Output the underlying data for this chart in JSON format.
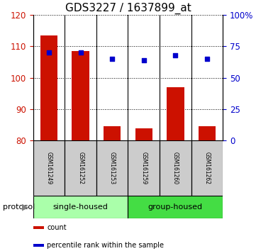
{
  "title": "GDS3227 / 1637899_at",
  "samples": [
    "GSM161249",
    "GSM161252",
    "GSM161253",
    "GSM161259",
    "GSM161260",
    "GSM161262"
  ],
  "bar_values": [
    113.5,
    108.5,
    84.5,
    84.0,
    97.0,
    84.5
  ],
  "bar_bottom": 80,
  "percentile_values": [
    70,
    70,
    65,
    64,
    68,
    65
  ],
  "left_ylim": [
    80,
    120
  ],
  "left_yticks": [
    80,
    90,
    100,
    110,
    120
  ],
  "right_ylim": [
    0,
    100
  ],
  "right_yticks": [
    0,
    25,
    50,
    75,
    100
  ],
  "right_yticklabels": [
    "0",
    "25",
    "50",
    "75",
    "100%"
  ],
  "bar_color": "#cc1100",
  "dot_color": "#0000cc",
  "group_single_color": "#aaffaa",
  "group_group_color": "#44dd44",
  "gray_box_color": "#cccccc",
  "protocol_label": "protocol",
  "legend_items": [
    {
      "color": "#cc1100",
      "label": "count",
      "marker": "s"
    },
    {
      "color": "#0000cc",
      "label": "percentile rank within the sample",
      "marker": "s"
    }
  ],
  "left_tick_color": "#cc1100",
  "right_tick_color": "#0000cc",
  "title_fontsize": 11,
  "tick_fontsize": 8.5,
  "sample_fontsize": 5.5,
  "group_fontsize": 8,
  "bar_width": 0.55
}
